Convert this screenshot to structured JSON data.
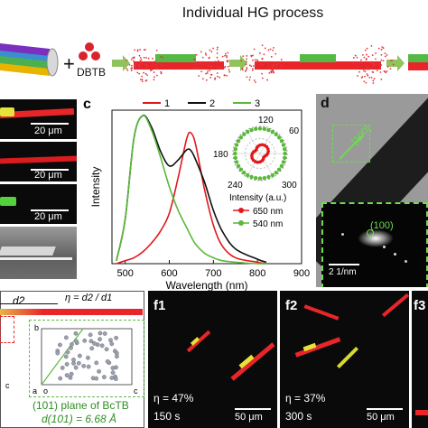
{
  "figure": {
    "process_title": "Individual HG process",
    "reagent": "DBTB",
    "panel_c": {
      "label": "c",
      "legend": [
        "1",
        "2",
        "3"
      ],
      "ylabel": "Intensity",
      "xlabel": "Wavelength (nm)",
      "x_ticks": [
        "500",
        "600",
        "700",
        "800",
        "900"
      ],
      "inset_ticks": [
        "60",
        "180",
        "300",
        "240"
      ],
      "inset_ticks_top": "120",
      "inset_xlabel": "Intensity (a.u.)",
      "inset_legend": [
        "650 nm",
        "540 nm"
      ],
      "colors": {
        "s1": "#e0181b",
        "s2": "#111111",
        "s3": "#59b93a"
      }
    },
    "panel_d": {
      "label": "d",
      "direction": "[100]",
      "saed_label": "(100)",
      "scale": "2 1/nm"
    },
    "panel_b": {
      "scales": [
        "20 μm",
        "20 μm",
        "20 μm"
      ]
    },
    "panel_e": {
      "d2": "d2",
      "eta": "η = d2 / d1",
      "axes": [
        "b",
        "a",
        "o",
        "c",
        "c"
      ],
      "plane": "(101) plane of BcTB",
      "spacing": "d(101) = 6.68 Å"
    },
    "panel_f": [
      {
        "label": "f1",
        "eta": "η = 47%",
        "time": "150 s",
        "scale": "50 μm"
      },
      {
        "label": "f2",
        "eta": "η = 37%",
        "time": "300 s",
        "scale": "50 μm"
      },
      {
        "label": "f3"
      }
    ]
  },
  "chart_data": {
    "type": "line",
    "xlabel": "Wavelength (nm)",
    "ylabel": "Intensity",
    "xlim": [
      470,
      900
    ],
    "x": [
      480,
      500,
      520,
      540,
      560,
      580,
      600,
      620,
      640,
      650,
      660,
      680,
      700,
      720,
      750,
      800,
      820
    ],
    "series": [
      {
        "name": "1",
        "values": [
          0.0,
          0.02,
          0.04,
          0.08,
          0.14,
          0.22,
          0.34,
          0.58,
          0.85,
          0.88,
          0.8,
          0.5,
          0.26,
          0.12,
          0.04,
          0.01,
          0.0
        ]
      },
      {
        "name": "2",
        "values": [
          0.02,
          0.3,
          0.85,
          1.0,
          0.92,
          0.76,
          0.66,
          0.7,
          0.77,
          0.76,
          0.7,
          0.55,
          0.36,
          0.22,
          0.1,
          0.03,
          0.01
        ]
      },
      {
        "name": "3",
        "values": [
          0.02,
          0.3,
          0.85,
          1.0,
          0.9,
          0.72,
          0.52,
          0.36,
          0.24,
          0.18,
          0.13,
          0.07,
          0.04,
          0.02,
          0.01,
          0.0,
          0.0
        ]
      }
    ]
  }
}
